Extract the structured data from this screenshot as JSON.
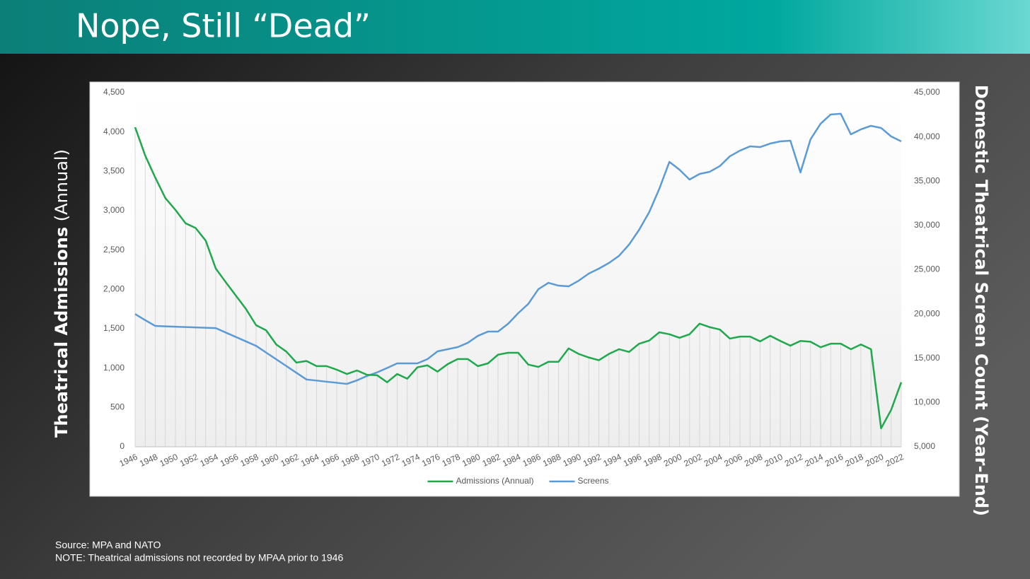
{
  "title": "Nope, Still “Dead”",
  "footnotes": [
    "Source: MPA and NATO",
    "NOTE: Theatrical admissions not recorded by MPAA prior to 1946"
  ],
  "chart_data": {
    "type": "line",
    "ylabel": [
      "Theatrical Admissions",
      "(Annual)"
    ],
    "y2label": "Domestic Theatrical Screen Count (Year-End)",
    "x": [
      1946,
      1947,
      1948,
      1949,
      1950,
      1951,
      1952,
      1953,
      1954,
      1955,
      1956,
      1957,
      1958,
      1959,
      1960,
      1961,
      1962,
      1963,
      1964,
      1965,
      1966,
      1967,
      1968,
      1969,
      1970,
      1971,
      1972,
      1973,
      1974,
      1975,
      1976,
      1977,
      1978,
      1979,
      1980,
      1981,
      1982,
      1983,
      1984,
      1985,
      1986,
      1987,
      1988,
      1989,
      1990,
      1991,
      1992,
      1993,
      1994,
      1995,
      1996,
      1997,
      1998,
      1999,
      2000,
      2001,
      2002,
      2003,
      2004,
      2005,
      2006,
      2007,
      2008,
      2009,
      2010,
      2011,
      2012,
      2013,
      2014,
      2015,
      2016,
      2017,
      2018,
      2019,
      2020,
      2021,
      2022
    ],
    "xlim": [
      1946,
      2022
    ],
    "xticks": [
      1946,
      1948,
      1950,
      1952,
      1954,
      1956,
      1958,
      1960,
      1962,
      1964,
      1966,
      1968,
      1970,
      1972,
      1974,
      1976,
      1978,
      1980,
      1982,
      1984,
      1986,
      1988,
      1990,
      1992,
      1994,
      1996,
      1998,
      2000,
      2002,
      2004,
      2006,
      2008,
      2010,
      2012,
      2014,
      2016,
      2018,
      2020,
      2022
    ],
    "ylim": [
      0,
      4500
    ],
    "yticks": [
      0,
      500,
      {
        "value": 1000,
        "label": "1,000"
      },
      {
        "value": 1500,
        "label": "1,500"
      },
      {
        "value": 2000,
        "label": "2,000"
      },
      {
        "value": 2500,
        "label": "2,500"
      },
      {
        "value": 3000,
        "label": "3,000"
      },
      {
        "value": 3500,
        "label": "3,500"
      },
      {
        "value": 4000,
        "label": "4,000"
      },
      {
        "value": 4500,
        "label": "4,500"
      }
    ],
    "y2lim": [
      5000,
      45000
    ],
    "y2ticks": [
      {
        "value": 5000,
        "label": "5,000"
      },
      {
        "value": 10000,
        "label": "10,000"
      },
      {
        "value": 15000,
        "label": "15,000"
      },
      {
        "value": 20000,
        "label": "20,000"
      },
      {
        "value": 25000,
        "label": "25,000"
      },
      {
        "value": 30000,
        "label": "30,000"
      },
      {
        "value": 35000,
        "label": "35,000"
      },
      {
        "value": 40000,
        "label": "40,000"
      },
      {
        "value": 45000,
        "label": "45,000"
      }
    ],
    "drop_lines": true,
    "legend": "bottom",
    "series": [
      {
        "name": "Admissions (Annual)",
        "color": "#1fa84c",
        "values": [
          4060,
          3700,
          3420,
          3160,
          3010,
          2840,
          2780,
          2620,
          2265,
          2090,
          1920,
          1750,
          1545,
          1480,
          1300,
          1210,
          1070,
          1090,
          1025,
          1025,
          980,
          925,
          970,
          915,
          910,
          820,
          925,
          865,
          1010,
          1035,
          955,
          1050,
          1115,
          1115,
          1025,
          1060,
          1170,
          1195,
          1195,
          1045,
          1015,
          1080,
          1080,
          1250,
          1180,
          1135,
          1100,
          1180,
          1240,
          1205,
          1310,
          1350,
          1455,
          1430,
          1385,
          1430,
          1565,
          1520,
          1490,
          1375,
          1400,
          1400,
          1340,
          1410,
          1345,
          1285,
          1345,
          1335,
          1265,
          1310,
          1310,
          1240,
          1300,
          1240,
          235,
          470,
          820
        ]
      },
      {
        "name": "Screens",
        "color": "#5b9bd5",
        "axis": "y2",
        "values": [
          20000,
          19300,
          18650,
          18600,
          18560,
          18520,
          18480,
          18440,
          18400,
          17900,
          17400,
          16900,
          16400,
          15640,
          14880,
          14120,
          13360,
          12600,
          12480,
          12350,
          12230,
          12100,
          12500,
          13000,
          13400,
          13900,
          14420,
          14420,
          14420,
          14900,
          15780,
          16020,
          16260,
          16740,
          17530,
          18010,
          18010,
          18890,
          20090,
          21130,
          22800,
          23520,
          23200,
          23120,
          23760,
          24560,
          25120,
          25760,
          26560,
          27840,
          29510,
          31510,
          34140,
          37180,
          36300,
          35180,
          35820,
          36060,
          36700,
          37810,
          38450,
          38930,
          38850,
          39250,
          39490,
          39570,
          35980,
          39730,
          41490,
          42530,
          42610,
          40290,
          40850,
          41250,
          41010,
          40050,
          39490
        ]
      }
    ]
  }
}
